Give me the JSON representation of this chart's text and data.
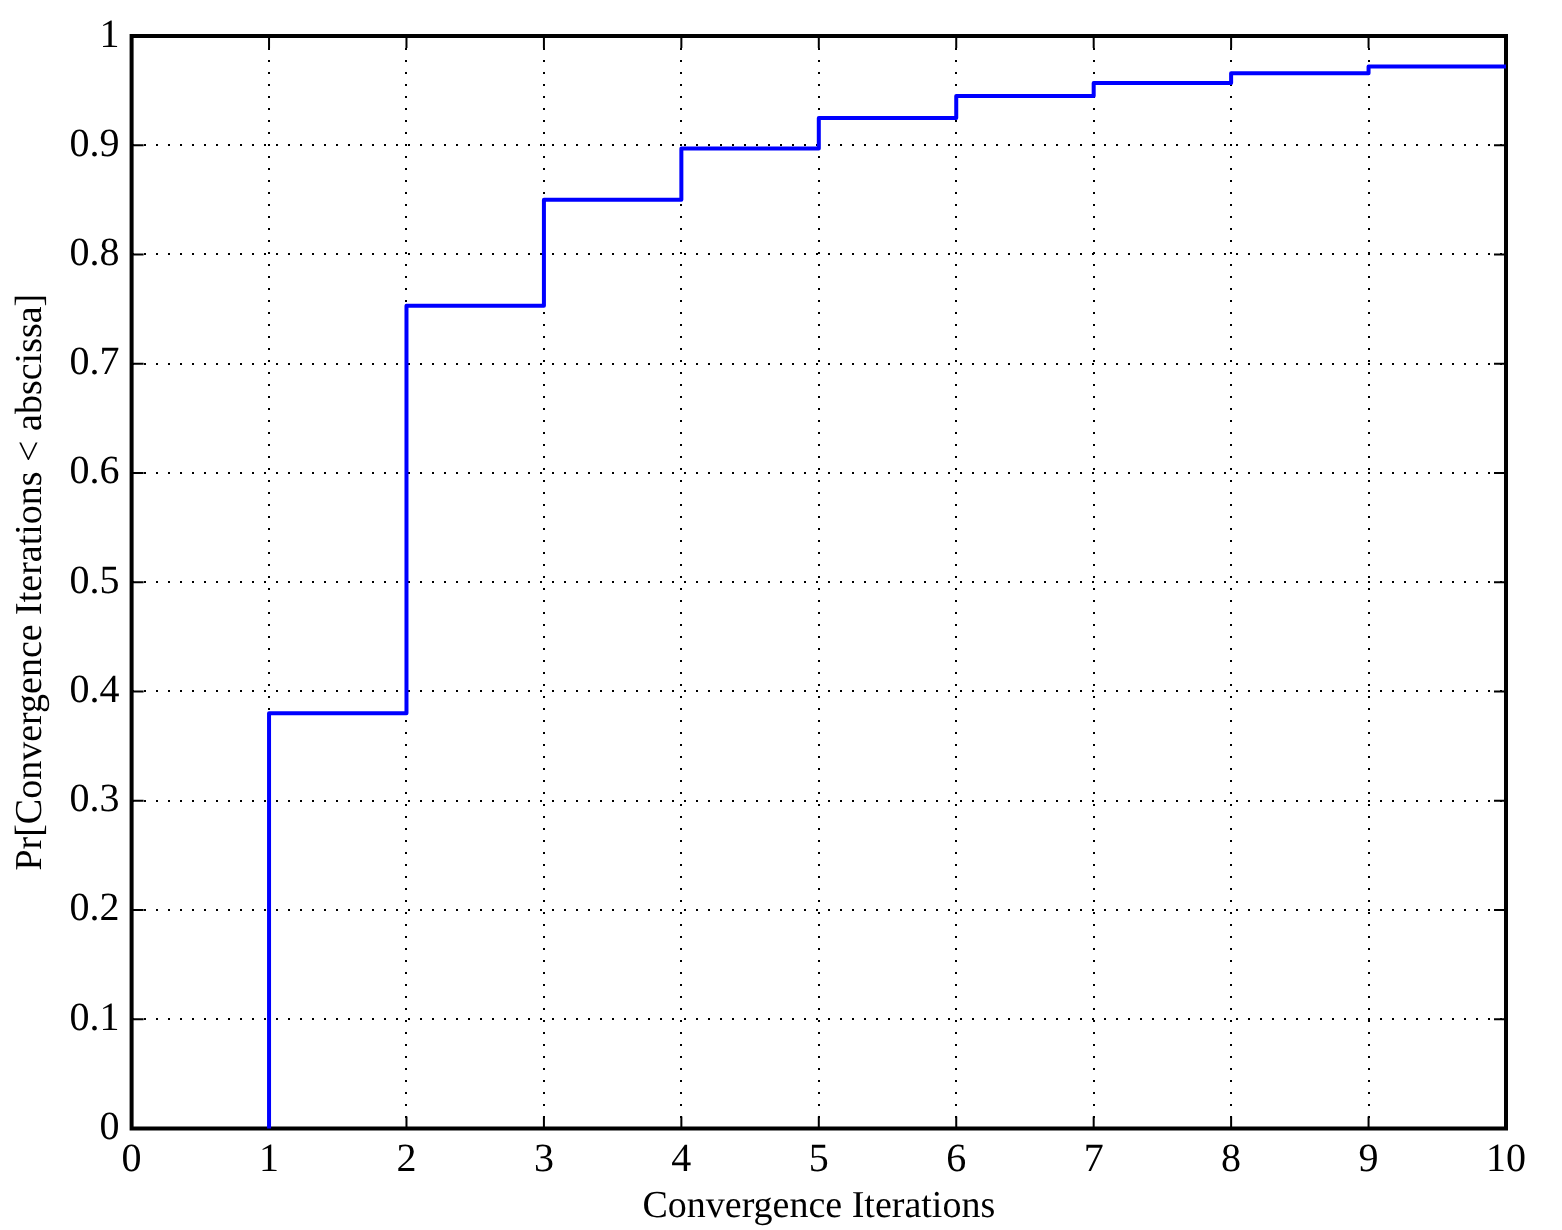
{
  "chart_data": {
    "type": "step",
    "xlabel": "Convergence Iterations",
    "ylabel": "Pr[Convergence Iterations < abscissa]",
    "x": [
      1,
      2,
      3,
      4,
      5,
      6,
      7,
      8,
      9,
      10
    ],
    "series": [
      {
        "color": "#0000ff",
        "values": [
          0,
          0.38,
          0.753,
          0.85,
          0.897,
          0.925,
          0.945,
          0.957,
          0.966,
          0.972
        ]
      }
    ],
    "xlim": [
      0,
      10
    ],
    "xticks": [
      0,
      1,
      2,
      3,
      4,
      5,
      6,
      7,
      8,
      9,
      10
    ],
    "ylim": [
      0,
      1
    ],
    "yticks": [
      0,
      0.1,
      0.2,
      0.3,
      0.4,
      0.5,
      0.6,
      0.7,
      0.8,
      0.9,
      1
    ],
    "grid": true,
    "legend": false,
    "line_style": "solid",
    "marker": "none"
  }
}
